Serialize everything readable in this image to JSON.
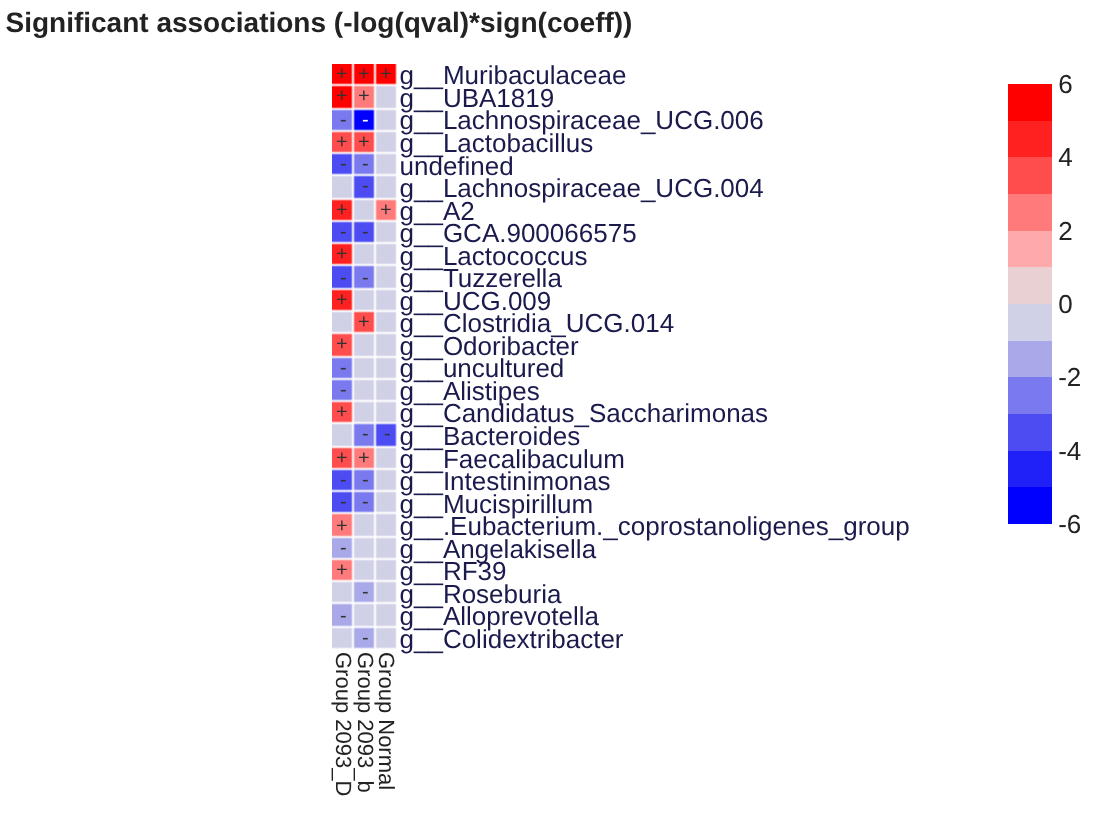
{
  "chart_data": {
    "type": "heatmap",
    "title": "Significant associations (-log(qval)*sign(coeff))",
    "categories": [
      "Group 2093_D",
      "Group 2093_b",
      "Group Normal"
    ],
    "y_categories": [
      "g__Muribaculaceae",
      "g__UBA1819",
      "g__Lachnospiraceae_UCG.006",
      "g__Lactobacillus",
      "undefined",
      "g__Lachnospiraceae_UCG.004",
      "g__A2",
      "g__GCA.900066575",
      "g__Lactococcus",
      "g__Tuzzerella",
      "g__UCG.009",
      "g__Clostridia_UCG.014",
      "g__Odoribacter",
      "g__uncultured",
      "g__Alistipes",
      "g__Candidatus_Saccharimonas",
      "g__Bacteroides",
      "g__Faecalibaculum",
      "g__Intestinimonas",
      "g__Mucispirillum",
      "g__.Eubacterium._coprostanoligenes_group",
      "g__Angelakisella",
      "g__RF39",
      "g__Roseburia",
      "g__Alloprevotella",
      "g__Colidextribacter"
    ],
    "cells": [
      [
        5.5,
        5.5,
        5.5
      ],
      [
        5.5,
        2.5,
        -0.5
      ],
      [
        -2.5,
        -5.5,
        -0.5
      ],
      [
        3.5,
        3.5,
        -0.5
      ],
      [
        -3.5,
        -2.5,
        -0.5
      ],
      [
        -0.5,
        -3.5,
        -0.5
      ],
      [
        4.5,
        -0.5,
        2.5
      ],
      [
        -3.5,
        -3.5,
        -0.5
      ],
      [
        4.5,
        -0.5,
        -0.5
      ],
      [
        -3.5,
        -2.5,
        -0.5
      ],
      [
        4.5,
        -0.5,
        -0.5
      ],
      [
        -0.5,
        3.5,
        -0.5
      ],
      [
        3.5,
        -0.5,
        -0.5
      ],
      [
        -2.5,
        -0.5,
        -0.5
      ],
      [
        -2.5,
        -0.5,
        -0.5
      ],
      [
        3.5,
        -0.5,
        -0.5
      ],
      [
        -0.5,
        -2.5,
        -3.5
      ],
      [
        3.5,
        2.5,
        -0.5
      ],
      [
        -3.5,
        -2.5,
        -0.5
      ],
      [
        -3.5,
        -2.5,
        -0.5
      ],
      [
        2.5,
        -0.5,
        -0.5
      ],
      [
        -1.5,
        -0.5,
        -0.5
      ],
      [
        2.5,
        -0.5,
        -0.5
      ],
      [
        -0.5,
        -1.5,
        -0.5
      ],
      [
        -1.5,
        -0.5,
        -0.5
      ],
      [
        -0.5,
        -1.5,
        -0.5
      ]
    ],
    "cell_labels": [
      [
        "+",
        "+",
        "+"
      ],
      [
        "+",
        "+",
        null
      ],
      [
        "-",
        "-",
        null
      ],
      [
        "+",
        "+",
        null
      ],
      [
        "-",
        "-",
        null
      ],
      [
        null,
        "-",
        null
      ],
      [
        "+",
        null,
        "+"
      ],
      [
        "-",
        "-",
        null
      ],
      [
        "+",
        null,
        null
      ],
      [
        "-",
        "-",
        null
      ],
      [
        "+",
        null,
        null
      ],
      [
        null,
        "+",
        null
      ],
      [
        "+",
        null,
        null
      ],
      [
        "-",
        null,
        null
      ],
      [
        "-",
        null,
        null
      ],
      [
        "+",
        null,
        null
      ],
      [
        null,
        "-",
        "-"
      ],
      [
        "+",
        "+",
        null
      ],
      [
        "-",
        "-",
        null
      ],
      [
        "-",
        "-",
        null
      ],
      [
        "+",
        null,
        null
      ],
      [
        "-",
        null,
        null
      ],
      [
        "+",
        null,
        null
      ],
      [
        null,
        "-",
        null
      ],
      [
        "-",
        null,
        null
      ],
      [
        null,
        "-",
        null
      ]
    ],
    "colors": [
      "#0000ff",
      "#2020f8",
      "#4c4cf2",
      "#7a7aee",
      "#a9a9ea",
      "#d0d1e6",
      "#e8d0d3",
      "#ffaaaa",
      "#ff7a7a",
      "#ff4c4c",
      "#ff2020",
      "#ff0000"
    ],
    "clim": [
      -6,
      6
    ],
    "cticks": [
      -6,
      -4,
      -2,
      0,
      2,
      4,
      6
    ]
  }
}
